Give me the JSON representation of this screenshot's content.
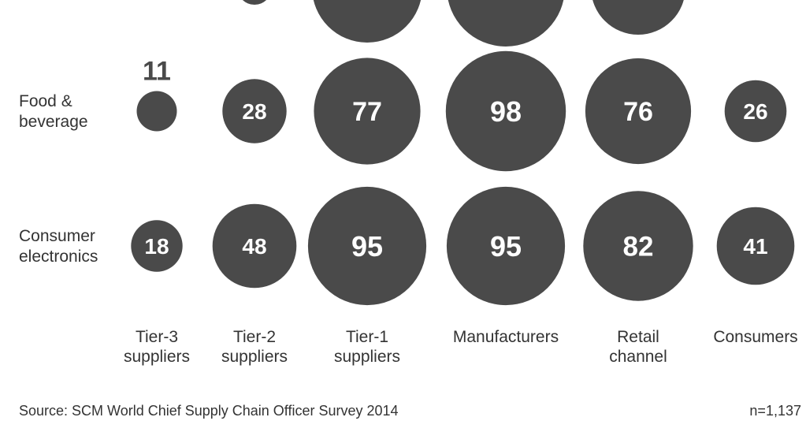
{
  "chart_data": {
    "type": "bubble-matrix",
    "columns": [
      "Tier-3 suppliers",
      "Tier-2 suppliers",
      "Tier-1 suppliers",
      "Manufacturers",
      "Retail channel",
      "Consumers"
    ],
    "column_label_lines": [
      [
        "Tier-3",
        "suppliers"
      ],
      [
        "Tier-2",
        "suppliers"
      ],
      [
        "Tier-1",
        "suppliers"
      ],
      [
        "Manufacturers"
      ],
      [
        "Retail",
        "channel"
      ],
      [
        "Consumers"
      ]
    ],
    "rows": [
      {
        "name": "Food & beverage",
        "label_lines": [
          "Food &",
          "beverage"
        ],
        "values": [
          11,
          28,
          77,
          98,
          76,
          26
        ]
      },
      {
        "name": "Consumer electronics",
        "label_lines": [
          "Consumer",
          "electronics"
        ],
        "values": [
          18,
          48,
          95,
          95,
          82,
          41
        ]
      }
    ],
    "bubble_color": "#4a4a4a",
    "value_max": 100
  },
  "footer": {
    "source": "Source: SCM World Chief Supply Chain Officer Survey 2014",
    "n": "n=1,137"
  }
}
